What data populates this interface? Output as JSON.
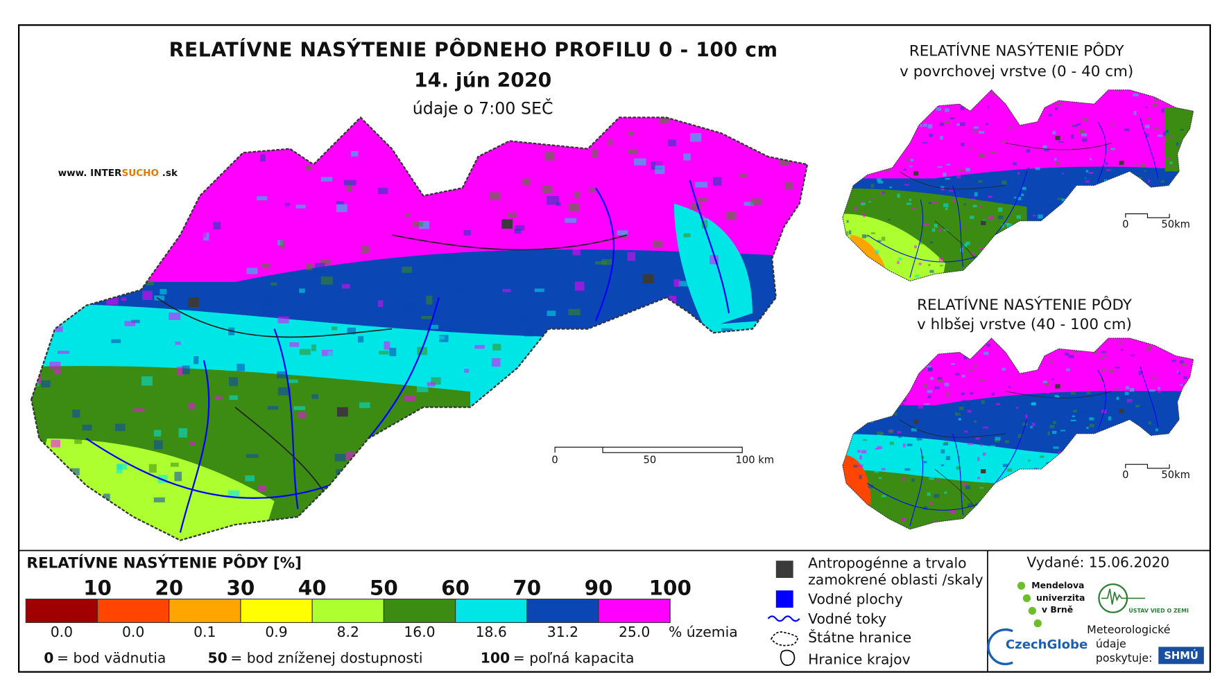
{
  "header": {
    "title": "RELATÍVNE NASÝTENIE PÔDNEHO PROFILU 0 - 100 cm",
    "date": "14. jún 2020",
    "time_note": "údaje o 7:00 SEČ"
  },
  "website": {
    "prefix": "www. INTER",
    "highlight": "SUCHO",
    "suffix": " .sk"
  },
  "main_map": {
    "scale_labels": [
      "0",
      "50",
      "100 km"
    ]
  },
  "inset_top": {
    "title": "RELATÍVNE NASÝTENIE PÔDY",
    "subtitle": "v povrchovej vrstve (0 - 40 cm)",
    "scale_labels": [
      "0",
      "50km"
    ]
  },
  "inset_bottom": {
    "title": "RELATÍVNE NASÝTENIE PÔDY",
    "subtitle": "v hlbšej vrstve (40 - 100 cm)",
    "scale_labels": [
      "0",
      "50km"
    ]
  },
  "legend": {
    "title": "RELATÍVNE NASÝTENIE PÔDY [%]",
    "boundaries": [
      "10",
      "20",
      "30",
      "40",
      "50",
      "60",
      "70",
      "90",
      "100"
    ],
    "colors": [
      "#a00000",
      "#ff4500",
      "#ffa500",
      "#ffff00",
      "#adff2f",
      "#3c8c14",
      "#00e5e5",
      "#0a46b4",
      "#ff00ff"
    ],
    "shares": [
      "0.0",
      "0.0",
      "0.1",
      "0.9",
      "8.2",
      "16.0",
      "18.6",
      "31.2",
      "25.0"
    ],
    "share_unit": "% územia",
    "notes": [
      {
        "key": "0",
        "text": "= bod vädnutia"
      },
      {
        "key": "50",
        "text": "= bod zníženej dostupnosti"
      },
      {
        "key": "100",
        "text": "= poľná kapacita"
      }
    ]
  },
  "map_key": [
    {
      "lines": [
        "Antropogénne a trvalo",
        "zamokrené oblasti /skaly"
      ]
    },
    {
      "lines": [
        "Vodné plochy"
      ]
    },
    {
      "lines": [
        "Vodné toky"
      ]
    },
    {
      "lines": [
        "Štátne hranice"
      ]
    },
    {
      "lines": [
        "Hranice krajov"
      ]
    }
  ],
  "issued": "Vydané: 15.06.2020",
  "providers": {
    "mendel": [
      "Mendelova",
      "univerzita",
      "v Brně"
    ],
    "czechglobe": "CzechGlobe",
    "uvz": "ÚSTAV VIED O ZEMI",
    "meteo": [
      "Meteorologické",
      "údaje",
      "poskytuje:"
    ],
    "shmu": "SHMÚ"
  }
}
